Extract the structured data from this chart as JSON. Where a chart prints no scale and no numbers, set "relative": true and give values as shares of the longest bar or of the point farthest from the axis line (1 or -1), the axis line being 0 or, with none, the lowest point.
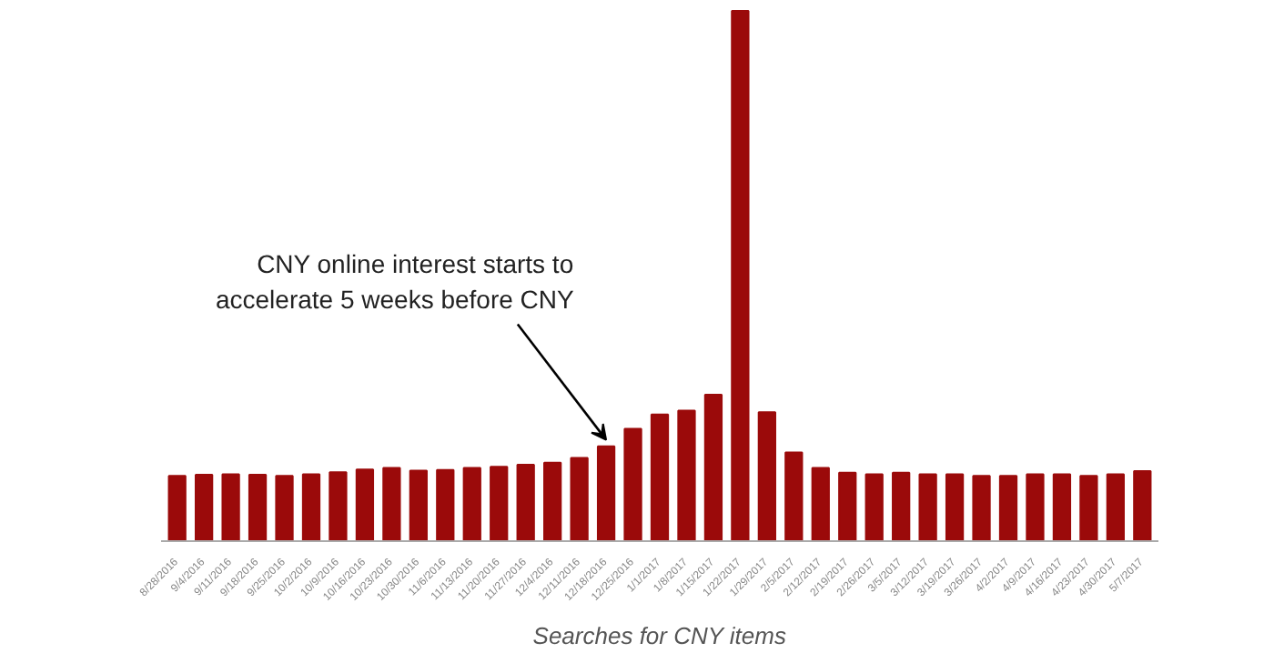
{
  "chart_data": {
    "type": "bar",
    "xlabel": "Searches for CNY items",
    "relative": true,
    "color": "#9b0a0a",
    "categories": [
      "8/28/2016",
      "9/4/2016",
      "9/11/2016",
      "9/18/2016",
      "9/25/2016",
      "10/2/2016",
      "10/9/2016",
      "10/16/2016",
      "10/23/2016",
      "10/30/2016",
      "11/6/2016",
      "11/13/2016",
      "11/20/2016",
      "11/27/2016",
      "12/4/2016",
      "12/11/2016",
      "12/18/2016",
      "12/25/2016",
      "1/1/2017",
      "1/8/2017",
      "1/15/2017",
      "1/22/2017",
      "1/29/2017",
      "2/5/2017",
      "2/12/2017",
      "2/19/2017",
      "2/26/2017",
      "3/5/2017",
      "3/12/2017",
      "3/19/2017",
      "3/26/2017",
      "4/2/2017",
      "4/9/2017",
      "4/16/2017",
      "4/23/2017",
      "4/30/2017",
      "5/7/2017"
    ],
    "values": [
      0.123,
      0.125,
      0.126,
      0.125,
      0.123,
      0.126,
      0.13,
      0.135,
      0.138,
      0.133,
      0.134,
      0.138,
      0.14,
      0.144,
      0.148,
      0.157,
      0.179,
      0.212,
      0.239,
      0.246,
      0.276,
      1,
      0.243,
      0.167,
      0.138,
      0.129,
      0.126,
      0.129,
      0.126,
      0.126,
      0.123,
      0.123,
      0.126,
      0.126,
      0.123,
      0.126,
      0.132
    ],
    "annotations": [
      {
        "text": "CNY online interest starts to accelerate 5 weeks before CNY",
        "x": "12/18/2016",
        "y": 0.179
      }
    ],
    "grid": false
  }
}
